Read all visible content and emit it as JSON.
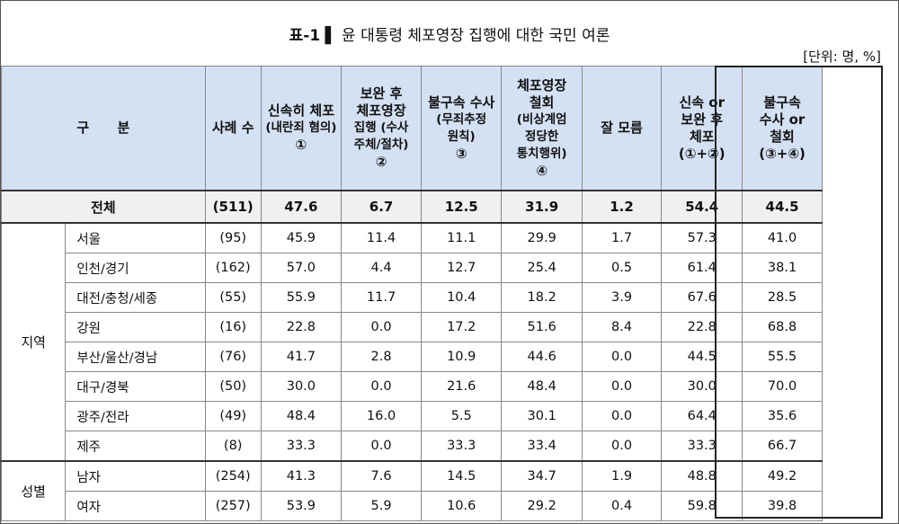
{
  "title": {
    "label": "표-1",
    "bar": "▌",
    "text": "윤 대통령 체포영장 집행에 대한 국민 여론"
  },
  "unit": "[단위: 명, %]",
  "headers": {
    "category": "구      분",
    "n": "사례 수",
    "col1": [
      "신속히 체포",
      "(내란죄 혐의)",
      "①"
    ],
    "col2": [
      "보완 후",
      "체포영장",
      "집행 (수사",
      "주체/절차)",
      "②"
    ],
    "col3": [
      "불구속 수사",
      "(무죄추정",
      "원칙)",
      "③"
    ],
    "col4": [
      "체포영장",
      "철회",
      "(비상계엄",
      "정당한",
      "통치행위)",
      "④"
    ],
    "col5": "잘 모름",
    "col6": [
      "신속 or",
      "보완 후",
      "체포",
      "(①+②)"
    ],
    "col7": [
      "불구속",
      "수사 or",
      "철회",
      "(③+④)"
    ]
  },
  "total": {
    "label": "전체",
    "n": "(511)",
    "values": [
      "47.6",
      "6.7",
      "12.5",
      "31.9",
      "1.2",
      "54.4",
      "44.5"
    ]
  },
  "groups": [
    {
      "name": "지역",
      "rows": [
        {
          "label": "서울",
          "n": "(95)",
          "values": [
            "45.9",
            "11.4",
            "11.1",
            "29.9",
            "1.7",
            "57.3",
            "41.0"
          ]
        },
        {
          "label": "인천/경기",
          "n": "(162)",
          "values": [
            "57.0",
            "4.4",
            "12.7",
            "25.4",
            "0.5",
            "61.4",
            "38.1"
          ]
        },
        {
          "label": "대전/충청/세종",
          "n": "(55)",
          "values": [
            "55.9",
            "11.7",
            "10.4",
            "18.2",
            "3.9",
            "67.6",
            "28.5"
          ]
        },
        {
          "label": "강원",
          "n": "(16)",
          "values": [
            "22.8",
            "0.0",
            "17.2",
            "51.6",
            "8.4",
            "22.8",
            "68.8"
          ]
        },
        {
          "label": "부산/울산/경남",
          "n": "(76)",
          "values": [
            "41.7",
            "2.8",
            "10.9",
            "44.6",
            "0.0",
            "44.5",
            "55.5"
          ]
        },
        {
          "label": "대구/경북",
          "n": "(50)",
          "values": [
            "30.0",
            "0.0",
            "21.6",
            "48.4",
            "0.0",
            "30.0",
            "70.0"
          ]
        },
        {
          "label": "광주/전라",
          "n": "(49)",
          "values": [
            "48.4",
            "16.0",
            "5.5",
            "30.1",
            "0.0",
            "64.4",
            "35.6"
          ]
        },
        {
          "label": "제주",
          "n": "(8)",
          "values": [
            "33.3",
            "0.0",
            "33.3",
            "33.4",
            "0.0",
            "33.3",
            "66.7"
          ]
        }
      ]
    },
    {
      "name": "성별",
      "rows": [
        {
          "label": "남자",
          "n": "(254)",
          "values": [
            "41.3",
            "7.6",
            "14.5",
            "34.7",
            "1.9",
            "48.8",
            "49.2"
          ]
        },
        {
          "label": "여자",
          "n": "(257)",
          "values": [
            "53.9",
            "5.9",
            "10.6",
            "29.2",
            "0.4",
            "59.8",
            "39.8"
          ]
        }
      ]
    }
  ]
}
